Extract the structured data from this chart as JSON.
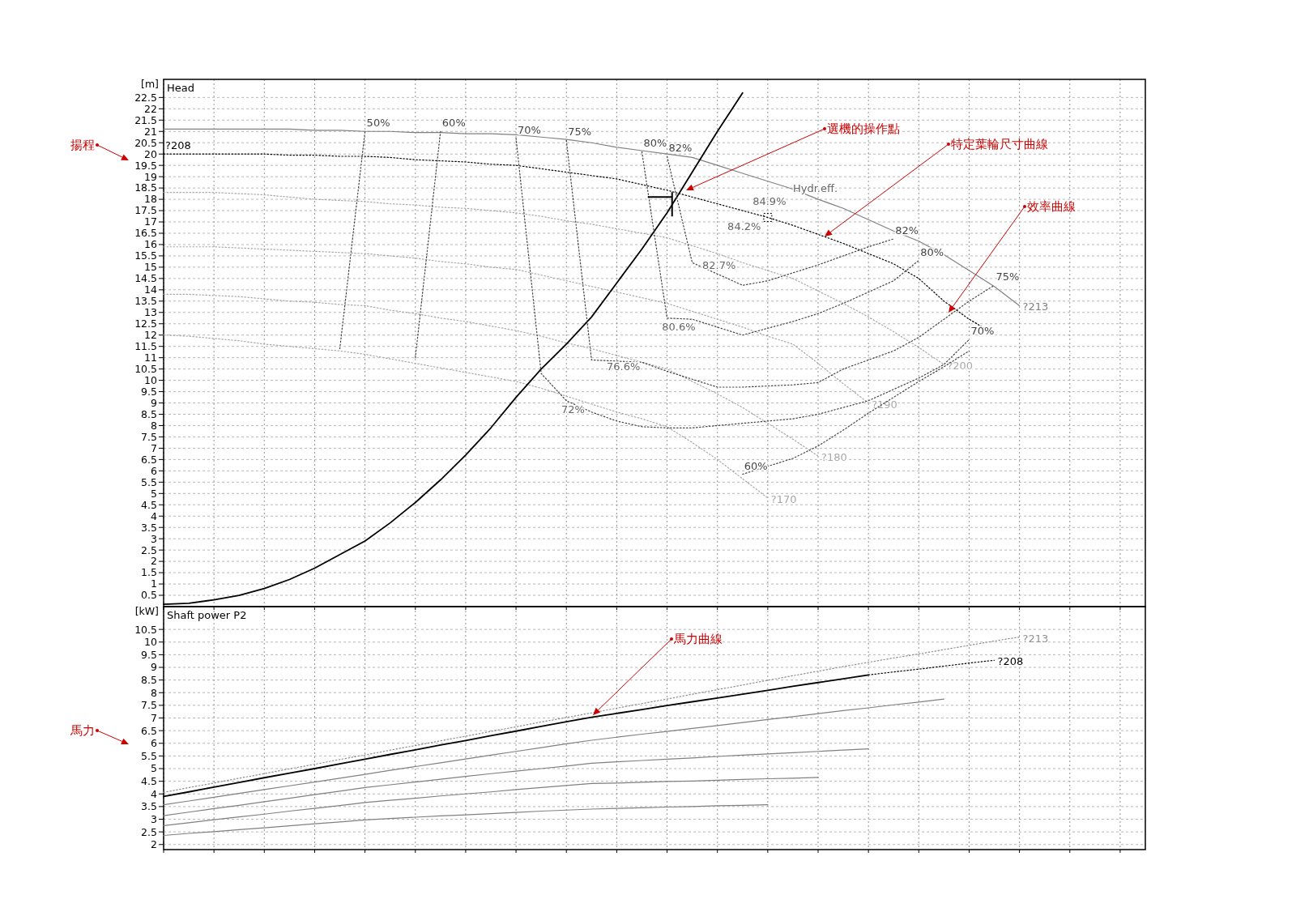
{
  "chart_data": [
    {
      "type": "line",
      "title": "Head",
      "ylabel": "[m]",
      "ylim": [
        0,
        23.3
      ],
      "categories": [
        null,
        null,
        null,
        null,
        null,
        null,
        null,
        null,
        null,
        null,
        null,
        null,
        null,
        null,
        null,
        null,
        null,
        null,
        null,
        null,
        null,
        null,
        null,
        null,
        null,
        null,
        null,
        null,
        null,
        null,
        null,
        null,
        null,
        null,
        null,
        null,
        null,
        null,
        null,
        null
      ],
      "yticks": [
        0.5,
        1,
        1.5,
        2,
        2.5,
        3,
        3.5,
        4,
        4.5,
        5,
        5.5,
        6,
        6.5,
        7,
        7.5,
        8,
        8.5,
        9,
        9.5,
        10,
        10.5,
        11,
        11.5,
        12,
        12.5,
        13,
        13.5,
        14,
        14.5,
        15,
        15.5,
        16,
        16.5,
        17,
        17.5,
        18,
        18.5,
        19,
        19.5,
        20,
        20.5,
        21,
        21.5,
        22,
        22.5
      ],
      "tick_labels": "y",
      "grid": true,
      "series": [
        {
          "name": "?213",
          "color": "#808080",
          "line_style": "solid",
          "values": [
            21.1,
            21.1,
            21.1,
            21.1,
            21.1,
            21.1,
            21.05,
            21.05,
            21.0,
            21.0,
            20.95,
            20.95,
            20.9,
            20.9,
            20.85,
            20.75,
            20.65,
            20.5,
            20.3,
            20.15,
            20.0,
            19.85,
            19.5,
            19.15,
            18.8,
            18.45,
            18.0,
            17.6,
            17.1,
            16.6,
            16.15,
            15.55,
            14.85,
            14.15,
            13.3,
            null,
            null,
            null,
            null,
            null
          ]
        },
        {
          "name": "?208",
          "color": "#000000",
          "line_style": "dotted",
          "values": [
            20.0,
            20.0,
            20.0,
            20.0,
            20.0,
            19.95,
            19.95,
            19.9,
            19.9,
            19.85,
            19.75,
            19.7,
            19.65,
            19.55,
            19.5,
            19.35,
            19.2,
            19.05,
            18.9,
            18.65,
            18.4,
            18.1,
            17.8,
            17.5,
            17.2,
            16.85,
            16.45,
            16.05,
            15.6,
            15.15,
            14.5,
            13.5,
            12.7,
            12.05,
            null,
            null,
            null,
            null,
            null,
            null
          ]
        },
        {
          "name": "?200",
          "color": "#a8a8a8",
          "line_style": "dotted",
          "values": [
            18.3,
            18.3,
            18.3,
            18.25,
            18.2,
            18.1,
            18.0,
            17.95,
            17.9,
            17.8,
            17.75,
            17.65,
            17.6,
            17.5,
            17.4,
            17.25,
            17.05,
            16.9,
            16.7,
            16.5,
            16.3,
            15.95,
            15.6,
            15.2,
            14.85,
            14.5,
            13.95,
            13.4,
            12.8,
            12.15,
            11.45,
            10.7,
            null,
            null,
            null,
            null,
            null,
            null,
            null,
            null
          ]
        },
        {
          "name": "?190",
          "color": "#a8a8a8",
          "line_style": "dotted",
          "values": [
            15.9,
            15.9,
            15.9,
            15.85,
            15.8,
            15.75,
            15.7,
            15.65,
            15.6,
            15.5,
            15.4,
            15.25,
            15.15,
            15.0,
            14.9,
            14.65,
            14.4,
            14.15,
            13.9,
            13.65,
            13.4,
            13.05,
            12.7,
            12.35,
            11.95,
            11.6,
            10.75,
            9.85,
            9.0,
            null,
            null,
            null,
            null,
            null,
            null,
            null,
            null,
            null,
            null,
            null
          ]
        },
        {
          "name": "?180",
          "color": "#a8a8a8",
          "line_style": "dotted",
          "values": [
            13.8,
            13.8,
            13.75,
            13.7,
            13.6,
            13.5,
            13.45,
            13.35,
            13.3,
            13.1,
            12.95,
            12.75,
            12.6,
            12.4,
            12.2,
            11.95,
            11.65,
            11.4,
            11.1,
            10.8,
            10.5,
            9.95,
            9.4,
            8.8,
            8.1,
            7.4,
            6.65,
            null,
            null,
            null,
            null,
            null,
            null,
            null,
            null,
            null,
            null,
            null,
            null,
            null
          ]
        },
        {
          "name": "?170",
          "color": "#a8a8a8",
          "line_style": "dotted",
          "values": [
            12.0,
            11.95,
            11.85,
            11.75,
            11.6,
            11.5,
            11.4,
            11.3,
            11.15,
            10.95,
            10.75,
            10.55,
            10.35,
            10.15,
            9.95,
            9.65,
            9.3,
            8.95,
            8.6,
            8.3,
            7.95,
            7.25,
            6.5,
            5.65,
            4.8,
            null,
            null,
            null,
            null,
            null,
            null,
            null,
            null,
            null,
            null,
            null,
            null,
            null,
            null,
            null
          ]
        },
        {
          "color": "#000000",
          "line_style": "solid",
          "values": [
            0.1,
            0.15,
            0.3,
            0.5,
            0.8,
            1.2,
            1.7,
            2.3,
            2.9,
            3.7,
            4.6,
            5.6,
            6.7,
            7.9,
            9.25,
            10.5,
            11.6,
            12.8,
            14.3,
            15.8,
            17.4,
            19.2,
            21.0,
            22.7,
            null,
            null,
            null,
            null,
            null,
            null,
            null,
            null,
            null,
            null,
            null,
            null,
            null,
            null,
            null,
            null
          ]
        },
        {
          "name": "50%",
          "color": "#444444",
          "line_style": "dotted",
          "values": [
            null,
            null,
            null,
            null,
            null,
            null,
            null,
            11.4,
            21.0,
            null,
            null,
            null,
            null,
            null,
            null,
            null,
            null,
            null,
            null,
            null,
            null,
            null,
            null,
            null,
            null,
            null,
            null,
            null,
            null,
            null,
            null,
            null,
            null,
            null,
            null,
            null,
            null,
            null,
            null,
            null
          ]
        },
        {
          "name": "60%",
          "color": "#444444",
          "line_style": "dotted",
          "values": [
            null,
            null,
            null,
            null,
            null,
            null,
            null,
            null,
            null,
            null,
            11.0,
            21.0,
            null,
            null,
            null,
            null,
            null,
            null,
            null,
            null,
            null,
            null,
            null,
            null,
            null,
            null,
            null,
            null,
            null,
            null,
            null,
            null,
            null,
            null,
            null,
            null,
            null,
            null,
            null,
            null
          ]
        },
        {
          "name": "70%",
          "color": "#444444",
          "line_style": "dotted",
          "values": [
            null,
            null,
            null,
            null,
            null,
            null,
            null,
            null,
            null,
            null,
            null,
            null,
            null,
            null,
            20.7,
            10.3,
            9.1,
            8.6,
            8.2,
            7.95,
            7.9,
            7.9,
            8.0,
            8.1,
            8.2,
            8.3,
            8.5,
            8.8,
            9.1,
            9.6,
            10.1,
            10.7,
            11.8,
            null,
            null,
            null,
            null,
            null,
            null,
            null
          ]
        },
        {
          "name": "75%",
          "color": "#444444",
          "line_style": "dotted",
          "values": [
            null,
            null,
            null,
            null,
            null,
            null,
            null,
            null,
            null,
            null,
            null,
            null,
            null,
            null,
            null,
            null,
            20.6,
            10.9,
            10.85,
            10.8,
            10.4,
            10.05,
            9.7,
            9.7,
            9.75,
            9.8,
            9.9,
            10.5,
            10.9,
            11.3,
            11.9,
            12.7,
            13.5,
            14.2,
            null,
            null,
            null,
            null,
            null,
            null
          ]
        },
        {
          "name": "80%",
          "color": "#444444",
          "line_style": "dotted",
          "values": [
            null,
            null,
            null,
            null,
            null,
            null,
            null,
            null,
            null,
            null,
            null,
            null,
            null,
            null,
            null,
            null,
            null,
            null,
            null,
            20.1,
            12.75,
            12.7,
            12.35,
            12.0,
            12.3,
            12.6,
            12.95,
            13.4,
            13.9,
            14.4,
            15.3,
            null,
            null,
            null,
            null,
            null,
            null,
            null,
            null,
            null
          ]
        },
        {
          "name": "82%",
          "color": "#444444",
          "line_style": "dotted",
          "values": [
            null,
            null,
            null,
            null,
            null,
            null,
            null,
            null,
            null,
            null,
            null,
            null,
            null,
            null,
            null,
            null,
            null,
            null,
            null,
            null,
            19.9,
            15.2,
            14.7,
            14.2,
            14.4,
            14.75,
            15.1,
            15.5,
            15.9,
            16.25,
            null,
            null,
            null,
            null,
            null,
            null,
            null,
            null,
            null,
            null
          ]
        },
        {
          "name": "60%",
          "color": "#444444",
          "line_style": "dotted",
          "values": [
            null,
            null,
            null,
            null,
            null,
            null,
            null,
            null,
            null,
            null,
            null,
            null,
            null,
            null,
            null,
            null,
            null,
            null,
            null,
            null,
            null,
            null,
            null,
            5.85,
            6.2,
            6.55,
            7.1,
            7.8,
            8.55,
            9.25,
            9.95,
            10.6,
            11.3,
            null,
            null,
            null,
            null,
            null,
            null,
            null
          ]
        }
      ],
      "annotations": [
        "揚程",
        "選機的操作點",
        "特定葉輪尺寸曲線",
        "效率曲線",
        "Hydr.eff.",
        "84.9%",
        "84.2%",
        "82.7%",
        "80.6%",
        "76.6%",
        "72%"
      ]
    },
    {
      "type": "line",
      "title": "Shaft power P2",
      "ylabel": "[kW]",
      "ylim": [
        1.8,
        11.4
      ],
      "categories": [
        null,
        null,
        null,
        null,
        null,
        null,
        null,
        null,
        null,
        null,
        null,
        null,
        null,
        null,
        null,
        null,
        null,
        null,
        null,
        null,
        null,
        null,
        null,
        null,
        null,
        null,
        null,
        null,
        null,
        null,
        null,
        null,
        null,
        null,
        null,
        null,
        null,
        null,
        null,
        null
      ],
      "yticks": [
        2,
        2.5,
        3,
        3.5,
        4,
        4.5,
        5,
        5.5,
        6,
        6.5,
        7,
        7.5,
        8,
        8.5,
        9,
        9.5,
        10,
        10.5
      ],
      "tick_labels": "y",
      "grid": true,
      "series": [
        {
          "name": "?213",
          "color": "#909090",
          "line_style": "dotted",
          "values": [
            4.06,
            4.25,
            4.43,
            4.62,
            4.8,
            4.99,
            5.17,
            5.36,
            5.54,
            5.73,
            5.91,
            6.1,
            6.28,
            6.47,
            6.65,
            6.84,
            7.02,
            7.2,
            7.39,
            7.57,
            7.75,
            7.94,
            8.12,
            8.3,
            8.49,
            8.67,
            8.85,
            9.03,
            9.2,
            9.37,
            9.53,
            9.7,
            9.87,
            10.04,
            10.2,
            null,
            null,
            null,
            null,
            null
          ]
        },
        {
          "color": "#000000",
          "line_style": "solid",
          "values": [
            3.9,
            4.08,
            4.27,
            4.45,
            4.64,
            4.82,
            5.0,
            5.19,
            5.37,
            5.56,
            5.74,
            5.93,
            6.11,
            6.3,
            6.48,
            6.67,
            6.85,
            7.03,
            7.18,
            7.33,
            7.49,
            7.64,
            7.79,
            7.94,
            8.09,
            8.25,
            8.4,
            8.55,
            8.7,
            null,
            null,
            null,
            null,
            null,
            null,
            null,
            null,
            null,
            null,
            null
          ]
        },
        {
          "name": "?208",
          "color": "#000000",
          "line_style": "dotted",
          "values": [
            null,
            null,
            null,
            null,
            null,
            null,
            null,
            null,
            null,
            null,
            null,
            null,
            null,
            null,
            null,
            null,
            null,
            null,
            null,
            null,
            null,
            null,
            null,
            null,
            null,
            null,
            null,
            null,
            8.7,
            8.82,
            8.93,
            9.05,
            9.17,
            9.28,
            null,
            null,
            null,
            null,
            null,
            null
          ]
        },
        {
          "color": "#808080",
          "line_style": "solid",
          "values": [
            3.57,
            3.72,
            3.87,
            4.02,
            4.17,
            4.32,
            4.47,
            4.62,
            4.77,
            4.93,
            5.08,
            5.23,
            5.38,
            5.53,
            5.68,
            5.83,
            5.98,
            6.12,
            6.24,
            6.36,
            6.47,
            6.59,
            6.7,
            6.82,
            6.94,
            7.05,
            7.17,
            7.29,
            7.4,
            7.52,
            7.63,
            7.75,
            null,
            null,
            null,
            null,
            null,
            null,
            null,
            null
          ]
        },
        {
          "color": "#808080",
          "line_style": "solid",
          "values": [
            3.14,
            3.28,
            3.42,
            3.55,
            3.69,
            3.83,
            3.97,
            4.11,
            4.25,
            4.36,
            4.47,
            4.58,
            4.69,
            4.8,
            4.9,
            5.0,
            5.1,
            5.21,
            5.27,
            5.32,
            5.37,
            5.42,
            5.48,
            5.53,
            5.58,
            5.63,
            5.68,
            5.73,
            5.78,
            null,
            null,
            null,
            null,
            null,
            null,
            null,
            null,
            null,
            null,
            null
          ]
        },
        {
          "color": "#808080",
          "line_style": "solid",
          "values": [
            2.75,
            2.86,
            2.98,
            3.09,
            3.2,
            3.32,
            3.43,
            3.54,
            3.66,
            3.75,
            3.83,
            3.92,
            4.0,
            4.08,
            4.17,
            4.25,
            4.33,
            4.41,
            4.43,
            4.46,
            4.49,
            4.51,
            4.54,
            4.57,
            4.6,
            4.62,
            4.65,
            null,
            null,
            null,
            null,
            null,
            null,
            null,
            null,
            null,
            null,
            null,
            null,
            null
          ]
        },
        {
          "color": "#808080",
          "line_style": "solid",
          "values": [
            2.36,
            2.44,
            2.51,
            2.59,
            2.66,
            2.74,
            2.82,
            2.89,
            2.97,
            3.03,
            3.08,
            3.13,
            3.17,
            3.22,
            3.27,
            3.32,
            3.36,
            3.4,
            3.43,
            3.45,
            3.48,
            3.5,
            3.53,
            3.55,
            3.57,
            null,
            null,
            null,
            null,
            null,
            null,
            null,
            null,
            null,
            null,
            null,
            null,
            null,
            null,
            null
          ]
        }
      ],
      "annotations": [
        "馬力曲線",
        "馬力"
      ]
    }
  ]
}
